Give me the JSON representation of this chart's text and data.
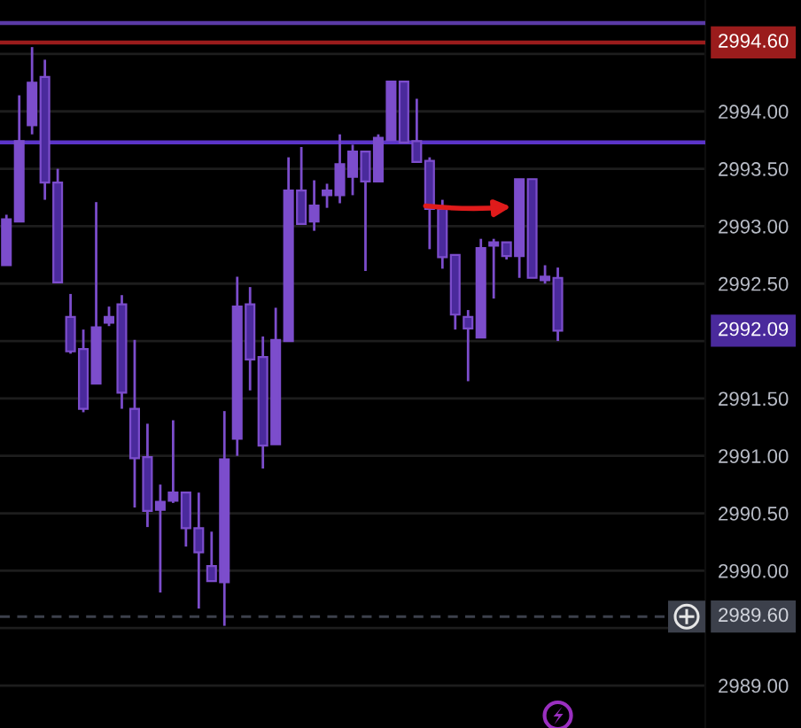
{
  "chart_data": {
    "type": "candlestick",
    "categories": [
      null,
      null,
      null,
      null,
      null,
      null,
      null,
      null,
      null,
      null,
      null,
      null,
      null,
      null,
      null,
      null,
      null,
      null,
      null,
      null,
      null,
      null,
      null,
      null,
      null,
      null,
      null,
      null,
      null,
      null,
      null,
      null,
      null,
      null,
      null,
      null,
      null,
      null,
      null,
      null,
      null,
      null,
      null,
      null,
      null,
      null,
      null,
      null,
      null,
      null,
      null,
      null,
      null,
      null,
      null
    ],
    "ohlc": [
      [
        2992.66,
        2993.1,
        2992.66,
        2993.06
      ],
      [
        2993.04,
        2994.14,
        2993.04,
        2993.74
      ],
      [
        2993.88,
        2994.56,
        2993.8,
        2994.25
      ],
      [
        2994.3,
        2994.45,
        2993.23,
        2993.38
      ],
      [
        2993.38,
        2993.5,
        2992.51,
        2992.51
      ],
      [
        2992.21,
        2992.41,
        2991.89,
        2991.91
      ],
      [
        2991.93,
        2992.1,
        2991.38,
        2991.41
      ],
      [
        2991.63,
        2993.21,
        2991.63,
        2992.12
      ],
      [
        2992.16,
        2992.3,
        2992.13,
        2992.21
      ],
      [
        2992.32,
        2992.4,
        2991.41,
        2991.55
      ],
      [
        2991.41,
        2992.01,
        2990.55,
        2990.98
      ],
      [
        2990.99,
        2991.28,
        2990.38,
        2990.52
      ],
      [
        2990.53,
        2990.75,
        2989.81,
        2990.6
      ],
      [
        2990.61,
        2991.31,
        2990.59,
        2990.68
      ],
      [
        2990.68,
        2990.68,
        2990.21,
        2990.37
      ],
      [
        2990.37,
        2990.68,
        2989.67,
        2990.16
      ],
      [
        2990.04,
        2990.34,
        2989.91,
        2989.91
      ],
      [
        2989.9,
        2991.39,
        2989.52,
        2990.97
      ],
      [
        2991.15,
        2992.56,
        2991.0,
        2992.3
      ],
      [
        2992.32,
        2992.47,
        2991.57,
        2991.84
      ],
      [
        2991.86,
        2992.04,
        2990.89,
        2991.09
      ],
      [
        2991.1,
        2992.29,
        2991.1,
        2992.01
      ],
      [
        2992.0,
        2993.6,
        2992.0,
        2993.31
      ],
      [
        2993.31,
        2993.69,
        2993.02,
        2993.02
      ],
      [
        2993.04,
        2993.4,
        2992.96,
        2993.18
      ],
      [
        2993.27,
        2993.37,
        2993.16,
        2993.31
      ],
      [
        2993.27,
        2993.8,
        2993.2,
        2993.54
      ],
      [
        2993.43,
        2993.71,
        2993.27,
        2993.65
      ],
      [
        2993.65,
        2993.65,
        2992.61,
        2993.39
      ],
      [
        2993.39,
        2993.8,
        2993.39,
        2993.77
      ],
      [
        2993.75,
        2994.26,
        2993.75,
        2994.26
      ],
      [
        2994.26,
        2994.26,
        2993.73,
        2993.73
      ],
      [
        2993.74,
        2994.11,
        2993.56,
        2993.56
      ],
      [
        2993.57,
        2993.6,
        2992.8,
        2993.15
      ],
      [
        2993.15,
        2993.23,
        2992.63,
        2992.73
      ],
      [
        2992.75,
        2992.75,
        2992.1,
        2992.23
      ],
      [
        2992.21,
        2992.27,
        2991.65,
        2992.11
      ],
      [
        2992.03,
        2992.89,
        2992.03,
        2992.81
      ],
      [
        2992.83,
        2992.89,
        2992.37,
        2992.86
      ],
      [
        2992.86,
        2992.86,
        2992.71,
        2992.74
      ],
      [
        2992.74,
        2993.41,
        2992.55,
        2993.41
      ],
      [
        2993.41,
        2993.41,
        2992.55,
        2992.55
      ],
      [
        2992.53,
        2992.66,
        2992.5,
        2992.56
      ],
      [
        2992.55,
        2992.64,
        2992.0,
        2992.09
      ],
      null,
      null,
      null,
      null,
      null,
      null,
      null,
      null,
      null,
      null,
      null
    ],
    "color": "#7c4dcc",
    "colors": [
      "#7c4dcc",
      "#7c4dcc",
      "#7c4dcc",
      "#4a2a9c",
      "#4a2a9c",
      "#4a2a9c",
      "#4a2a9c",
      "#7c4dcc",
      "#7c4dcc",
      "#4a2a9c",
      "#4a2a9c",
      "#4a2a9c",
      "#7c4dcc",
      "#7c4dcc",
      "#4a2a9c",
      "#4a2a9c",
      "#4a2a9c",
      "#7c4dcc",
      "#7c4dcc",
      "#4a2a9c",
      "#4a2a9c",
      "#7c4dcc",
      "#7c4dcc",
      "#4a2a9c",
      "#7c4dcc",
      "#7c4dcc",
      "#7c4dcc",
      "#7c4dcc",
      "#4a2a9c",
      "#7c4dcc",
      "#7c4dcc",
      "#4a2a9c",
      "#4a2a9c",
      "#4a2a9c",
      "#4a2a9c",
      "#4a2a9c",
      "#4a2a9c",
      "#7c4dcc",
      "#7c4dcc",
      "#4a2a9c",
      "#7c4dcc",
      "#4a2a9c",
      "#7c4dcc",
      "#4a2a9c",
      null,
      null,
      null,
      null,
      null,
      null,
      null,
      null,
      null,
      null,
      null
    ],
    "ylim": [
      2988.63,
      2994.97
    ],
    "yticks": [
      {
        "value": 2989.0,
        "label": "2989.00"
      },
      {
        "value": 2989.5,
        "label": null
      },
      {
        "value": 2990.0,
        "label": "2990.00"
      },
      {
        "value": 2990.5,
        "label": "2990.50"
      },
      {
        "value": 2991.0,
        "label": "2991.00"
      },
      {
        "value": 2991.5,
        "label": "2991.50"
      },
      {
        "value": 2992.0,
        "label": null
      },
      {
        "value": 2992.5,
        "label": "2992.50"
      },
      {
        "value": 2993.0,
        "label": "2993.00"
      },
      {
        "value": 2993.5,
        "label": "2993.50"
      },
      {
        "value": 2994.0,
        "label": "2994.00"
      },
      {
        "value": 2994.5,
        "label": null
      }
    ],
    "grid": "y",
    "tick_labels": "y",
    "ref_lines": [
      {
        "axis": "y",
        "value": 2994.77,
        "color": "#5a3aa6"
      },
      {
        "axis": "y",
        "value": 2994.6,
        "label": "2994.60",
        "color": "#9a1c1c"
      },
      {
        "axis": "y",
        "value": 2993.73,
        "color": "#5b34c9"
      },
      {
        "axis": "y",
        "value": 2989.6,
        "label": "2989.60",
        "color": "#3c404b",
        "line_style": "dashed"
      }
    ],
    "annotations": [
      "2992.09"
    ]
  }
}
